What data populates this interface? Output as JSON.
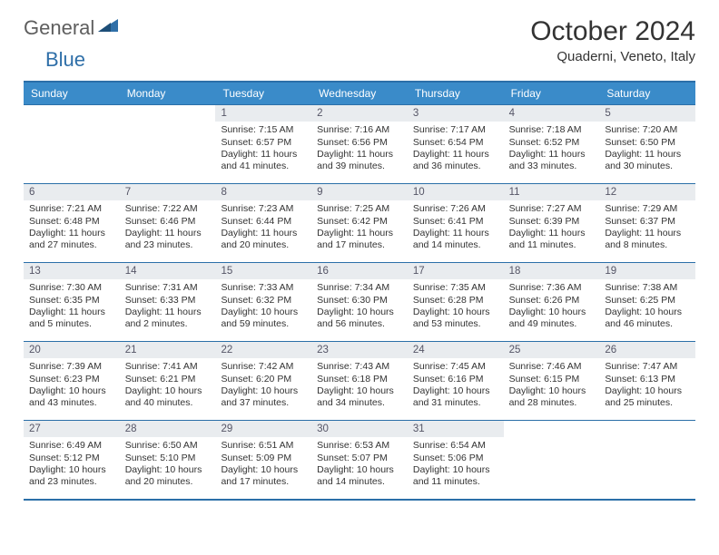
{
  "logo": {
    "general": "General",
    "blue": "Blue"
  },
  "title": "October 2024",
  "location": "Quaderni, Veneto, Italy",
  "colors": {
    "header_bg": "#3a8bc9",
    "border": "#2b6fa8",
    "daynum_bg": "#e9ecef",
    "text": "#333333"
  },
  "weekdays": [
    "Sunday",
    "Monday",
    "Tuesday",
    "Wednesday",
    "Thursday",
    "Friday",
    "Saturday"
  ],
  "weeks": [
    [
      {
        "empty": true
      },
      {
        "empty": true
      },
      {
        "day": "1",
        "sunrise": "Sunrise: 7:15 AM",
        "sunset": "Sunset: 6:57 PM",
        "daylight": "Daylight: 11 hours and 41 minutes."
      },
      {
        "day": "2",
        "sunrise": "Sunrise: 7:16 AM",
        "sunset": "Sunset: 6:56 PM",
        "daylight": "Daylight: 11 hours and 39 minutes."
      },
      {
        "day": "3",
        "sunrise": "Sunrise: 7:17 AM",
        "sunset": "Sunset: 6:54 PM",
        "daylight": "Daylight: 11 hours and 36 minutes."
      },
      {
        "day": "4",
        "sunrise": "Sunrise: 7:18 AM",
        "sunset": "Sunset: 6:52 PM",
        "daylight": "Daylight: 11 hours and 33 minutes."
      },
      {
        "day": "5",
        "sunrise": "Sunrise: 7:20 AM",
        "sunset": "Sunset: 6:50 PM",
        "daylight": "Daylight: 11 hours and 30 minutes."
      }
    ],
    [
      {
        "day": "6",
        "sunrise": "Sunrise: 7:21 AM",
        "sunset": "Sunset: 6:48 PM",
        "daylight": "Daylight: 11 hours and 27 minutes."
      },
      {
        "day": "7",
        "sunrise": "Sunrise: 7:22 AM",
        "sunset": "Sunset: 6:46 PM",
        "daylight": "Daylight: 11 hours and 23 minutes."
      },
      {
        "day": "8",
        "sunrise": "Sunrise: 7:23 AM",
        "sunset": "Sunset: 6:44 PM",
        "daylight": "Daylight: 11 hours and 20 minutes."
      },
      {
        "day": "9",
        "sunrise": "Sunrise: 7:25 AM",
        "sunset": "Sunset: 6:42 PM",
        "daylight": "Daylight: 11 hours and 17 minutes."
      },
      {
        "day": "10",
        "sunrise": "Sunrise: 7:26 AM",
        "sunset": "Sunset: 6:41 PM",
        "daylight": "Daylight: 11 hours and 14 minutes."
      },
      {
        "day": "11",
        "sunrise": "Sunrise: 7:27 AM",
        "sunset": "Sunset: 6:39 PM",
        "daylight": "Daylight: 11 hours and 11 minutes."
      },
      {
        "day": "12",
        "sunrise": "Sunrise: 7:29 AM",
        "sunset": "Sunset: 6:37 PM",
        "daylight": "Daylight: 11 hours and 8 minutes."
      }
    ],
    [
      {
        "day": "13",
        "sunrise": "Sunrise: 7:30 AM",
        "sunset": "Sunset: 6:35 PM",
        "daylight": "Daylight: 11 hours and 5 minutes."
      },
      {
        "day": "14",
        "sunrise": "Sunrise: 7:31 AM",
        "sunset": "Sunset: 6:33 PM",
        "daylight": "Daylight: 11 hours and 2 minutes."
      },
      {
        "day": "15",
        "sunrise": "Sunrise: 7:33 AM",
        "sunset": "Sunset: 6:32 PM",
        "daylight": "Daylight: 10 hours and 59 minutes."
      },
      {
        "day": "16",
        "sunrise": "Sunrise: 7:34 AM",
        "sunset": "Sunset: 6:30 PM",
        "daylight": "Daylight: 10 hours and 56 minutes."
      },
      {
        "day": "17",
        "sunrise": "Sunrise: 7:35 AM",
        "sunset": "Sunset: 6:28 PM",
        "daylight": "Daylight: 10 hours and 53 minutes."
      },
      {
        "day": "18",
        "sunrise": "Sunrise: 7:36 AM",
        "sunset": "Sunset: 6:26 PM",
        "daylight": "Daylight: 10 hours and 49 minutes."
      },
      {
        "day": "19",
        "sunrise": "Sunrise: 7:38 AM",
        "sunset": "Sunset: 6:25 PM",
        "daylight": "Daylight: 10 hours and 46 minutes."
      }
    ],
    [
      {
        "day": "20",
        "sunrise": "Sunrise: 7:39 AM",
        "sunset": "Sunset: 6:23 PM",
        "daylight": "Daylight: 10 hours and 43 minutes."
      },
      {
        "day": "21",
        "sunrise": "Sunrise: 7:41 AM",
        "sunset": "Sunset: 6:21 PM",
        "daylight": "Daylight: 10 hours and 40 minutes."
      },
      {
        "day": "22",
        "sunrise": "Sunrise: 7:42 AM",
        "sunset": "Sunset: 6:20 PM",
        "daylight": "Daylight: 10 hours and 37 minutes."
      },
      {
        "day": "23",
        "sunrise": "Sunrise: 7:43 AM",
        "sunset": "Sunset: 6:18 PM",
        "daylight": "Daylight: 10 hours and 34 minutes."
      },
      {
        "day": "24",
        "sunrise": "Sunrise: 7:45 AM",
        "sunset": "Sunset: 6:16 PM",
        "daylight": "Daylight: 10 hours and 31 minutes."
      },
      {
        "day": "25",
        "sunrise": "Sunrise: 7:46 AM",
        "sunset": "Sunset: 6:15 PM",
        "daylight": "Daylight: 10 hours and 28 minutes."
      },
      {
        "day": "26",
        "sunrise": "Sunrise: 7:47 AM",
        "sunset": "Sunset: 6:13 PM",
        "daylight": "Daylight: 10 hours and 25 minutes."
      }
    ],
    [
      {
        "day": "27",
        "sunrise": "Sunrise: 6:49 AM",
        "sunset": "Sunset: 5:12 PM",
        "daylight": "Daylight: 10 hours and 23 minutes."
      },
      {
        "day": "28",
        "sunrise": "Sunrise: 6:50 AM",
        "sunset": "Sunset: 5:10 PM",
        "daylight": "Daylight: 10 hours and 20 minutes."
      },
      {
        "day": "29",
        "sunrise": "Sunrise: 6:51 AM",
        "sunset": "Sunset: 5:09 PM",
        "daylight": "Daylight: 10 hours and 17 minutes."
      },
      {
        "day": "30",
        "sunrise": "Sunrise: 6:53 AM",
        "sunset": "Sunset: 5:07 PM",
        "daylight": "Daylight: 10 hours and 14 minutes."
      },
      {
        "day": "31",
        "sunrise": "Sunrise: 6:54 AM",
        "sunset": "Sunset: 5:06 PM",
        "daylight": "Daylight: 10 hours and 11 minutes."
      },
      {
        "empty": true
      },
      {
        "empty": true
      }
    ]
  ]
}
